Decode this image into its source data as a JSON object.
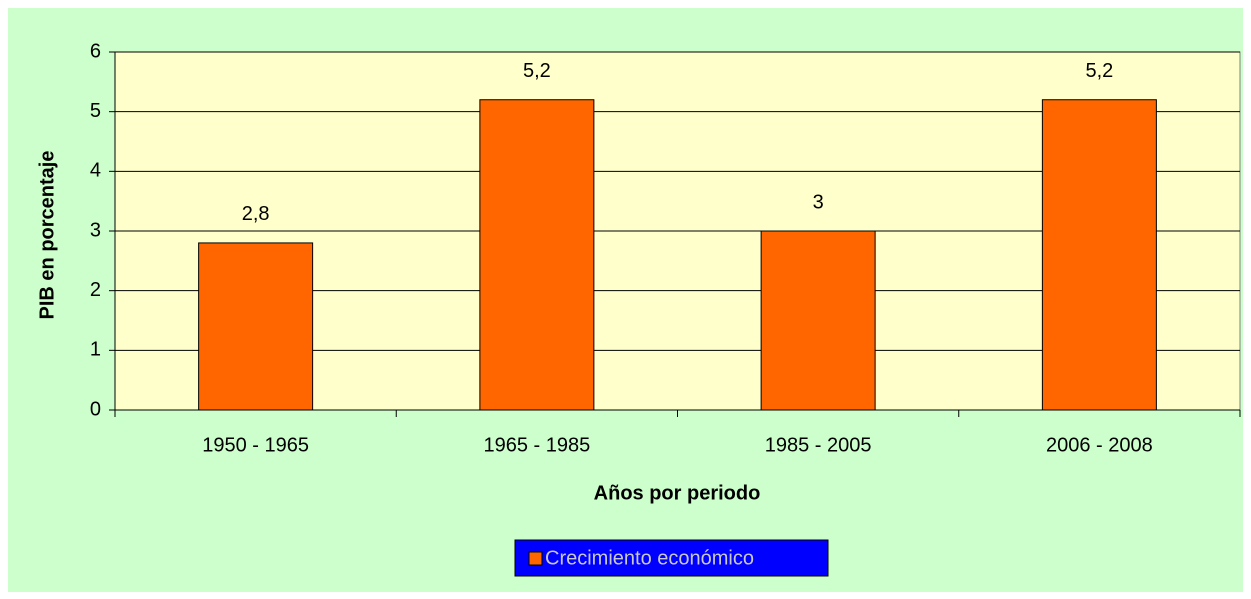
{
  "chart_data": {
    "type": "bar",
    "categories": [
      "1950 - 1965",
      "1965 - 1985",
      "1985 - 2005",
      "2006 - 2008"
    ],
    "series": [
      {
        "name": "Crecimiento económico",
        "color": "#ff6600",
        "values": [
          2.8,
          5.2,
          3,
          5.2
        ],
        "value_labels": [
          "2,8",
          "5,2",
          "3",
          "5,2"
        ]
      }
    ],
    "x_label": "Años por periodo",
    "y_label": "PIB en porcentaje",
    "ylim": [
      0,
      6
    ],
    "yticks": [
      0,
      1,
      2,
      3,
      4,
      5,
      6
    ],
    "grid": true,
    "legend": "bottom"
  }
}
